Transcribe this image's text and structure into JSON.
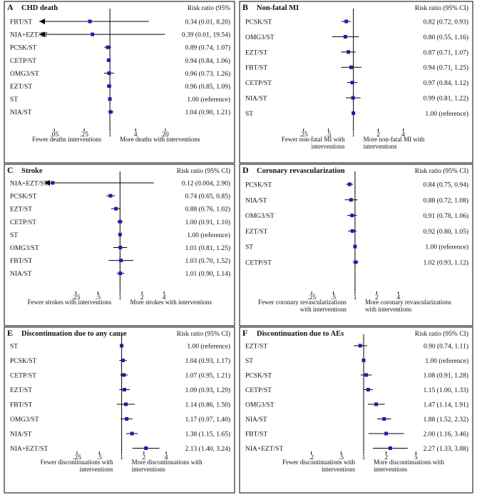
{
  "chart_data": [
    {
      "type": "forest",
      "letter": "A",
      "title": "CHD death",
      "rr_header": "Risk ratio (95%",
      "scale": "log",
      "xlim": [
        0.03,
        40
      ],
      "xticks": [
        0.05,
        0.25,
        1,
        4,
        20
      ],
      "xtick_labels": [
        ".05",
        ".25",
        "1",
        "4",
        "20"
      ],
      "left_note": [
        "Fewer deaths interventions"
      ],
      "right_note": [
        "More deaths with interventions"
      ],
      "rows": [
        {
          "label": "FBT/ST",
          "rr": 0.34,
          "lo": 0.01,
          "hi": 8.2,
          "text": "0.34 (0.01, 8.20)"
        },
        {
          "label": "NIA+EZT/ST",
          "rr": 0.39,
          "lo": 0.01,
          "hi": 19.54,
          "text": "0.39 (0.01, 19.54)"
        },
        {
          "label": "PCSK/ST",
          "rr": 0.89,
          "lo": 0.74,
          "hi": 1.07,
          "text": "0.89 (0.74, 1.07)"
        },
        {
          "label": "CETP/ST",
          "rr": 0.94,
          "lo": 0.84,
          "hi": 1.06,
          "text": "0.94 (0.84, 1.06)"
        },
        {
          "label": "OMG3/ST",
          "rr": 0.96,
          "lo": 0.73,
          "hi": 1.26,
          "text": "0.96 (0.73, 1.26)"
        },
        {
          "label": "EZT/ST",
          "rr": 0.96,
          "lo": 0.85,
          "hi": 1.09,
          "text": "0.96 (0.85, 1.09)"
        },
        {
          "label": "ST",
          "rr": 1.0,
          "lo": 1.0,
          "hi": 1.0,
          "text": "1.00 (reference)"
        },
        {
          "label": "NIA/ST",
          "rr": 1.04,
          "lo": 0.9,
          "hi": 1.21,
          "text": "1.04 (0.90, 1.21)"
        }
      ]
    },
    {
      "type": "forest",
      "letter": "B",
      "title": "Non-fatal MI",
      "rr_header": "Risk ratio (95% CI)",
      "scale": "log",
      "xlim": [
        0.15,
        6.5
      ],
      "xticks": [
        0.25,
        0.5,
        1,
        2,
        4
      ],
      "xtick_labels": [
        ".25",
        ".5",
        "1",
        "2",
        "4"
      ],
      "left_note": [
        "Fewer non-fatal MI with",
        "interventions"
      ],
      "right_note": [
        "More non-fatal MI with",
        "interventions"
      ],
      "rows": [
        {
          "label": "PCSK/ST",
          "rr": 0.82,
          "lo": 0.72,
          "hi": 0.93,
          "text": "0.82 (0.72, 0.93)"
        },
        {
          "label": "OMG3/ST",
          "rr": 0.8,
          "lo": 0.55,
          "hi": 1.16,
          "text": "0.80 (0.55, 1.16)"
        },
        {
          "label": "EZT/ST",
          "rr": 0.87,
          "lo": 0.71,
          "hi": 1.07,
          "text": "0.87 (0.71, 1.07)"
        },
        {
          "label": "FBT/ST",
          "rr": 0.94,
          "lo": 0.71,
          "hi": 1.25,
          "text": "0.94 (0.71, 1.25)"
        },
        {
          "label": "CETP/ST",
          "rr": 0.97,
          "lo": 0.84,
          "hi": 1.12,
          "text": "0.97 (0.84, 1.12)"
        },
        {
          "label": "NIA/ST",
          "rr": 0.99,
          "lo": 0.81,
          "hi": 1.22,
          "text": "0.99 (0.81, 1.22)"
        },
        {
          "label": "ST",
          "rr": 1.0,
          "lo": 1.0,
          "hi": 1.0,
          "text": "1.00 (reference)"
        }
      ]
    },
    {
      "type": "forest",
      "letter": "C",
      "title": "Stroke",
      "rr_header": "Risk ratio (95% CI)",
      "scale": "log",
      "xlim": [
        0.11,
        7
      ],
      "xticks": [
        0.25,
        0.5,
        1,
        2,
        4
      ],
      "xtick_labels": [
        ".25",
        ".5",
        "1",
        "2",
        "4"
      ],
      "left_note": [
        "Fewer strokes with interventions"
      ],
      "right_note": [
        "More strokes with interventions"
      ],
      "rows": [
        {
          "label": "NIA+EZT/ST",
          "rr": 0.12,
          "lo": 0.004,
          "hi": 2.9,
          "text": "0.12 (0.004, 2.90)"
        },
        {
          "label": "PCSK/ST",
          "rr": 0.74,
          "lo": 0.65,
          "hi": 0.85,
          "text": "0.74 (0.65, 0.85)"
        },
        {
          "label": "EZT/ST",
          "rr": 0.88,
          "lo": 0.76,
          "hi": 1.02,
          "text": "0.88 (0.76, 1.02)"
        },
        {
          "label": "CETP/ST",
          "rr": 1.0,
          "lo": 0.91,
          "hi": 1.1,
          "text": "1.00 (0.91, 1.10)"
        },
        {
          "label": "ST",
          "rr": 1.0,
          "lo": 1.0,
          "hi": 1.0,
          "text": "1.00 (reference)"
        },
        {
          "label": "OMG3/ST",
          "rr": 1.01,
          "lo": 0.81,
          "hi": 1.25,
          "text": "1.01 (0.81, 1.25)"
        },
        {
          "label": "FBT/ST",
          "rr": 1.03,
          "lo": 0.7,
          "hi": 1.52,
          "text": "1.03 (0.70, 1.52)"
        },
        {
          "label": "NIA/ST",
          "rr": 1.01,
          "lo": 0.9,
          "hi": 1.14,
          "text": "1.01 (0.90, 1.14)"
        }
      ]
    },
    {
      "type": "forest",
      "letter": "D",
      "title": "Coronary revascularization",
      "rr_header": "Risk ratio (95% CI)",
      "scale": "log",
      "xlim": [
        0.12,
        6.5
      ],
      "xticks": [
        0.25,
        0.5,
        1,
        2,
        4
      ],
      "xtick_labels": [
        ".25",
        ".5",
        "1",
        "2",
        "4"
      ],
      "left_note": [
        "Fewer coronary revascularizations",
        "with interventions"
      ],
      "right_note": [
        "More coronary revascularizations",
        "with interventions"
      ],
      "rows": [
        {
          "label": "PCSK/ST",
          "rr": 0.84,
          "lo": 0.75,
          "hi": 0.94,
          "text": "0.84 (0.75, 0.94)"
        },
        {
          "label": "NIA/ST",
          "rr": 0.88,
          "lo": 0.72,
          "hi": 1.08,
          "text": "0.88 (0.72, 1.08)"
        },
        {
          "label": "OMG3/ST",
          "rr": 0.91,
          "lo": 0.78,
          "hi": 1.06,
          "text": "0.91 (0.78, 1.06)"
        },
        {
          "label": "EZT/ST",
          "rr": 0.92,
          "lo": 0.8,
          "hi": 1.05,
          "text": "0.92 (0.80, 1.05)"
        },
        {
          "label": "ST",
          "rr": 1.0,
          "lo": 1.0,
          "hi": 1.0,
          "text": "1.00 (reference)"
        },
        {
          "label": "CETP/ST",
          "rr": 1.02,
          "lo": 0.93,
          "hi": 1.12,
          "text": "1.02 (0.93, 1.12)"
        }
      ]
    },
    {
      "type": "forest",
      "letter": "E",
      "title": "Discontinuation due to any cause",
      "rr_header": "Risk ratio (95% CI)",
      "scale": "log",
      "xlim": [
        0.12,
        6.5
      ],
      "xticks": [
        0.25,
        0.5,
        1,
        2,
        4
      ],
      "xtick_labels": [
        ".25",
        ".5",
        "1",
        "2",
        "4"
      ],
      "left_note": [
        "Fewer discontinuations with",
        "interventions"
      ],
      "right_note": [
        "More discontinuations with",
        "interventions"
      ],
      "rows": [
        {
          "label": "ST",
          "rr": 1.0,
          "lo": 1.0,
          "hi": 1.0,
          "text": "1.00 (reference)"
        },
        {
          "label": "PCSK/ST",
          "rr": 1.04,
          "lo": 0.93,
          "hi": 1.17,
          "text": "1.04 (0.93, 1.17)"
        },
        {
          "label": "CETP/ST",
          "rr": 1.07,
          "lo": 0.95,
          "hi": 1.21,
          "text": "1.07 (0.95, 1.21)"
        },
        {
          "label": "EZT/ST",
          "rr": 1.09,
          "lo": 0.93,
          "hi": 1.29,
          "text": "1.09 (0.93, 1.29)"
        },
        {
          "label": "FBT/ST",
          "rr": 1.14,
          "lo": 0.86,
          "hi": 1.5,
          "text": "1.14 (0.86, 1.50)"
        },
        {
          "label": "OMG3/ST",
          "rr": 1.17,
          "lo": 0.97,
          "hi": 1.4,
          "text": "1.17 (0.97, 1.40)"
        },
        {
          "label": "NIA/ST",
          "rr": 1.38,
          "lo": 1.15,
          "hi": 1.65,
          "text": "1.38 (1.15, 1.65)"
        },
        {
          "label": "NIA+EZT/ST",
          "rr": 2.13,
          "lo": 1.4,
          "hi": 3.24,
          "text": "2.13 (1.40, 3.24)"
        }
      ]
    },
    {
      "type": "forest",
      "letter": "F",
      "title": "Discontinuation due to AEs",
      "rr_header": "Risk ratio (95% CI)",
      "scale": "log",
      "xlim": [
        0.1,
        10
      ],
      "xticks": [
        0.2,
        0.5,
        1,
        2,
        5
      ],
      "xtick_labels": [
        ".2",
        ".5",
        "1",
        "2",
        "5"
      ],
      "left_note": [
        "Fewer discontinuations with",
        "interventions"
      ],
      "right_note": [
        "More discontinuations with",
        "interventions"
      ],
      "rows": [
        {
          "label": "EZT/ST",
          "rr": 0.9,
          "lo": 0.74,
          "hi": 1.11,
          "text": "0.90 (0.74, 1.11)"
        },
        {
          "label": "ST",
          "rr": 1.0,
          "lo": 1.0,
          "hi": 1.0,
          "text": "1.00 (reference)"
        },
        {
          "label": "PCSK/ST",
          "rr": 1.08,
          "lo": 0.91,
          "hi": 1.28,
          "text": "1.08 (0.91, 1.28)"
        },
        {
          "label": "CETP/ST",
          "rr": 1.15,
          "lo": 1.0,
          "hi": 1.33,
          "text": "1.15 (1.00, 1.33)"
        },
        {
          "label": "OMG3/ST",
          "rr": 1.47,
          "lo": 1.14,
          "hi": 1.91,
          "text": "1.47 (1.14, 1.91)"
        },
        {
          "label": "NIA/ST",
          "rr": 1.88,
          "lo": 1.52,
          "hi": 2.32,
          "text": "1.88 (1.52, 2.32)"
        },
        {
          "label": "FBT/ST",
          "rr": 2.0,
          "lo": 1.16,
          "hi": 3.46,
          "text": "2.00 (1.16, 3.46)"
        },
        {
          "label": "NIA+EZT/ST",
          "rr": 2.27,
          "lo": 1.33,
          "hi": 3.88,
          "text": "2.27 (1.33, 3.88)"
        }
      ]
    }
  ]
}
